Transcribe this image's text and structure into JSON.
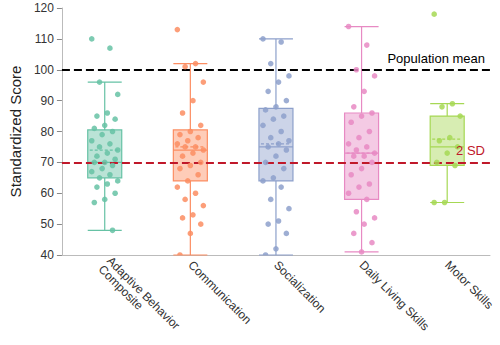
{
  "chart_data": {
    "type": "boxplot",
    "y_label": "Standardized Score",
    "categories": [
      "Adaptive Behavior Composite",
      "Communication",
      "Socialization",
      "Daily Living Skills",
      "Motor Skills"
    ],
    "colors": [
      "#66c2a5",
      "#fc8d62",
      "#8da0cb",
      "#e78ac3",
      "#a6d854"
    ],
    "boxes": [
      [
        48,
        65,
        70,
        80.5,
        96
      ],
      [
        40,
        64,
        74,
        80.5,
        102
      ],
      [
        40,
        64,
        75,
        87.5,
        110
      ],
      [
        41,
        58,
        73,
        86,
        114
      ],
      [
        57,
        69,
        75,
        85,
        89
      ]
    ],
    "means": [
      74,
      75,
      76,
      73,
      77.5
    ],
    "points": [
      [
        110,
        107,
        96,
        92,
        86,
        85,
        84,
        82,
        81,
        80,
        79,
        77,
        76,
        75,
        74,
        73,
        72,
        71,
        70,
        70,
        69,
        68,
        67,
        66,
        65,
        64,
        63,
        62,
        60,
        58,
        57,
        48
      ],
      [
        113,
        102,
        101,
        96,
        90,
        86,
        82,
        80,
        79,
        78,
        77,
        76,
        75,
        75,
        74,
        73,
        72,
        70,
        69,
        68,
        66,
        64,
        62,
        60,
        58,
        56,
        53,
        52,
        50,
        47,
        40
      ],
      [
        110,
        109,
        102,
        98,
        96,
        93,
        90,
        88,
        87,
        85,
        84,
        82,
        80,
        78,
        77,
        76,
        75,
        74,
        72,
        70,
        68,
        65,
        64,
        62,
        58,
        55,
        51,
        50,
        47,
        42,
        40
      ],
      [
        114,
        108,
        100,
        98,
        93,
        88,
        86,
        85,
        83,
        80,
        78,
        76,
        75,
        74,
        73,
        72,
        72,
        70,
        68,
        66,
        63,
        62,
        60,
        58,
        54,
        52,
        50,
        47,
        44,
        41
      ],
      [
        118,
        89,
        88,
        85,
        78,
        77,
        75,
        73,
        70,
        69,
        57,
        57
      ]
    ],
    "annotations": [
      {
        "label": "Population mean",
        "value": 100,
        "color": "#000000",
        "line_style": "dashed"
      },
      {
        "label": "2 SD",
        "value": 70,
        "color": "#c0182a",
        "line_style": "dashed"
      }
    ],
    "ylim": [
      40,
      120
    ],
    "yticks": [
      40,
      50,
      60,
      70,
      80,
      90,
      100,
      110,
      120
    ],
    "grid": false
  }
}
